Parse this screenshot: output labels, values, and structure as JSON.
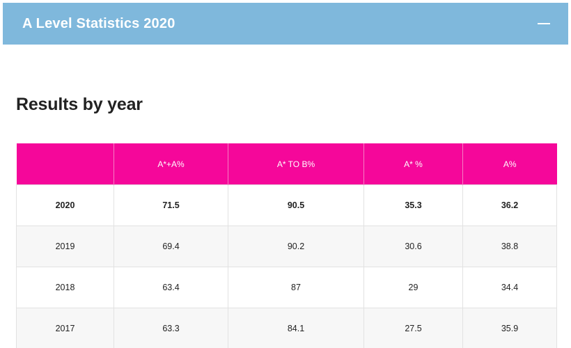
{
  "accordion": {
    "title": "A Level Statistics 2020",
    "toggle_icon": "minus-icon"
  },
  "section": {
    "heading": "Results by year"
  },
  "table": {
    "headers": [
      "",
      "A*+A%",
      "A* TO B%",
      "A* %",
      "A%"
    ],
    "rows": [
      {
        "year": "2020",
        "a_star_a": "71.5",
        "a_star_b": "90.5",
        "a_star": "35.3",
        "a": "36.2",
        "bold": true
      },
      {
        "year": "2019",
        "a_star_a": "69.4",
        "a_star_b": "90.2",
        "a_star": "30.6",
        "a": "38.8",
        "bold": false
      },
      {
        "year": "2018",
        "a_star_a": "63.4",
        "a_star_b": "87",
        "a_star": "29",
        "a": "34.4",
        "bold": false
      },
      {
        "year": "2017",
        "a_star_a": "63.3",
        "a_star_b": "84.1",
        "a_star": "27.5",
        "a": "35.9",
        "bold": false
      }
    ]
  },
  "colors": {
    "header_bar": "#7fb8dc",
    "table_header": "#f5079a"
  }
}
